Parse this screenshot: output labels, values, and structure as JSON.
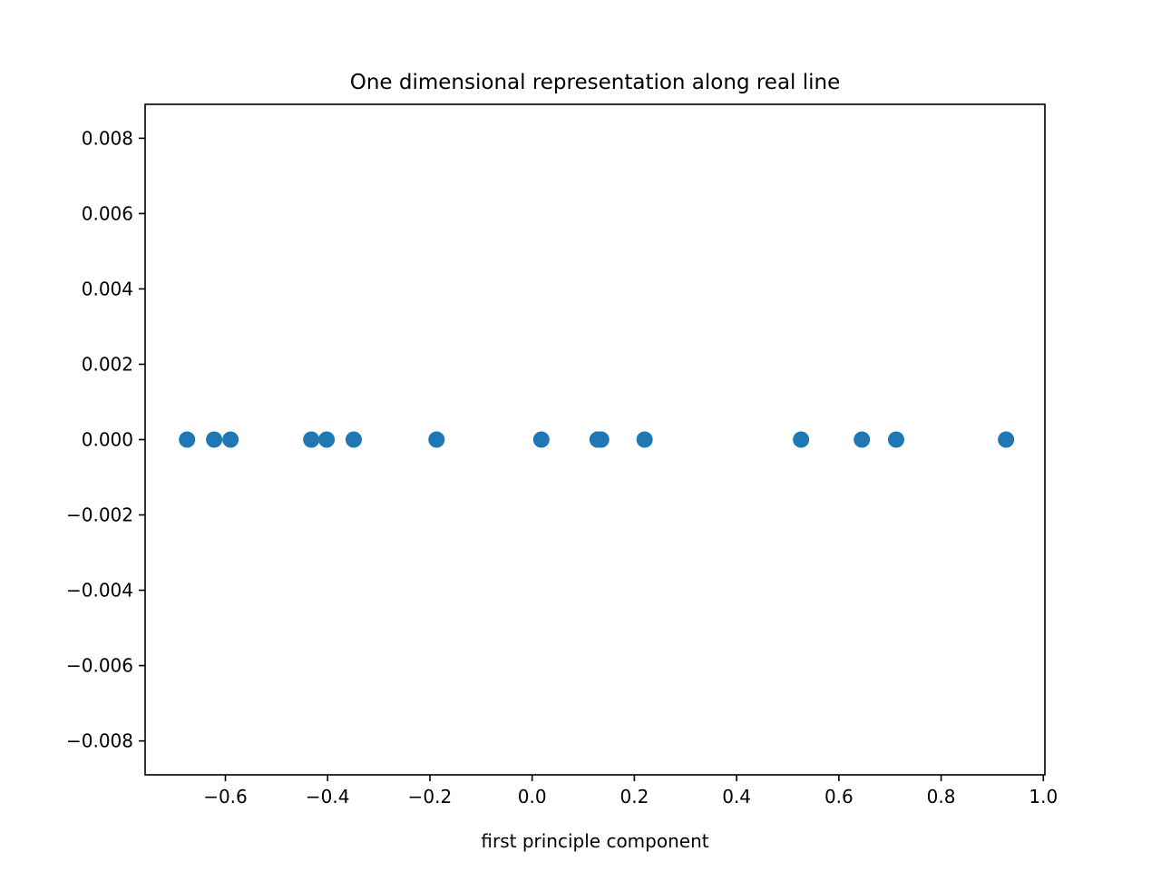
{
  "chart_data": {
    "type": "scatter",
    "title": "One dimensional representation along real line",
    "xlabel": "first principle component",
    "ylabel": "",
    "xlim": [
      -0.757,
      1.003
    ],
    "ylim": [
      -0.0089,
      0.0089
    ],
    "xticks": [
      -0.6,
      -0.4,
      -0.2,
      0.0,
      0.2,
      0.4,
      0.6,
      0.8,
      1.0
    ],
    "xtick_labels": [
      "−0.6",
      "−0.4",
      "−0.2",
      "0.0",
      "0.2",
      "0.4",
      "0.6",
      "0.8",
      "1.0"
    ],
    "yticks": [
      0.008,
      0.006,
      0.004,
      0.002,
      0.0,
      -0.002,
      -0.004,
      -0.006,
      -0.008
    ],
    "ytick_labels": [
      "0.008",
      "0.006",
      "0.004",
      "0.002",
      "0.000",
      "−0.002",
      "−0.004",
      "−0.006",
      "−0.008"
    ],
    "grid": false,
    "legend": "none",
    "marker_color": "#1f77b4",
    "series": [
      {
        "x": [
          -0.675,
          -0.622,
          -0.59,
          -0.432,
          -0.402,
          -0.349,
          -0.187,
          0.018,
          0.128,
          0.135,
          0.22,
          0.526,
          0.645,
          0.712,
          0.927
        ],
        "y": [
          0,
          0,
          0,
          0,
          0,
          0,
          0,
          0,
          0,
          0,
          0,
          0,
          0,
          0,
          0
        ]
      }
    ]
  }
}
